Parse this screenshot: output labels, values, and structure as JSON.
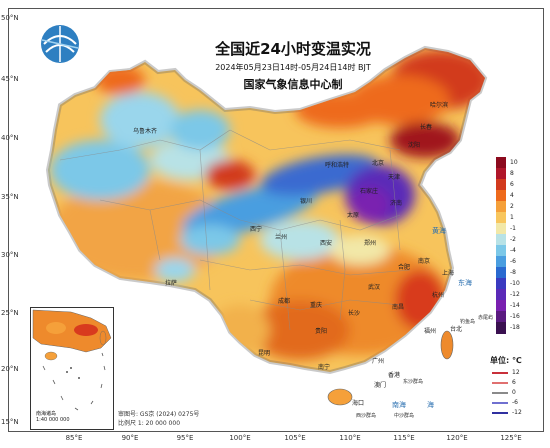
{
  "title": "全国近24小时变温实况",
  "period": "2024年05月23日14时-05月24日14时 BJT",
  "agency": "国家气象信息中心制",
  "logo": "globe-logo-icon",
  "lat_labels": [
    "50°N",
    "45°N",
    "40°N",
    "35°N",
    "30°N",
    "25°N",
    "20°N",
    "15°N"
  ],
  "lon_labels": [
    "85°E",
    "90°E",
    "95°E",
    "100°E",
    "105°E",
    "110°E",
    "115°E",
    "120°E",
    "125°E"
  ],
  "legend": {
    "items": [
      {
        "label": "10",
        "color": "#8c0a1e"
      },
      {
        "label": "8",
        "color": "#b0162a"
      },
      {
        "label": "6",
        "color": "#d23a1e"
      },
      {
        "label": "4",
        "color": "#ee6a1c"
      },
      {
        "label": "2",
        "color": "#f5a03a"
      },
      {
        "label": "1",
        "color": "#f8c65e"
      },
      {
        "label": "-1",
        "color": "#f2e8a8"
      },
      {
        "label": "-2",
        "color": "#b8e2e6"
      },
      {
        "label": "-4",
        "color": "#7cc8e8"
      },
      {
        "label": "-6",
        "color": "#4a9ee0"
      },
      {
        "label": "-8",
        "color": "#2a6ad0"
      },
      {
        "label": "-10",
        "color": "#3a3ac0"
      },
      {
        "label": "-12",
        "color": "#5a2ab8"
      },
      {
        "label": "-14",
        "color": "#7a20b0"
      },
      {
        "label": "-16",
        "color": "#5a1a80"
      },
      {
        "label": "-18",
        "color": "#3a1050"
      }
    ]
  },
  "unit": "单位: ℃",
  "wind_legend": [
    {
      "label": "12",
      "color": "#c8303a"
    },
    {
      "label": "6",
      "color": "#e07070"
    },
    {
      "label": "0",
      "color": "#8a8a8a"
    },
    {
      "label": "-6",
      "color": "#7070d0"
    },
    {
      "label": "-12",
      "color": "#3030a0"
    }
  ],
  "inset": {
    "label_line1": "南海诸岛",
    "label_line2": "1:40 000 000"
  },
  "map_info": {
    "line1": "审图号: GS京 (2024) 0275号",
    "line2": "比例尺 1: 20 000 000"
  },
  "cities": [
    {
      "name": "乌鲁木齐"
    },
    {
      "name": "哈尔滨"
    },
    {
      "name": "长春"
    },
    {
      "name": "沈阳"
    },
    {
      "name": "北京"
    },
    {
      "name": "天津"
    },
    {
      "name": "石家庄"
    },
    {
      "name": "太原"
    },
    {
      "name": "济南"
    },
    {
      "name": "呼和浩特"
    },
    {
      "name": "银川"
    },
    {
      "name": "兰州"
    },
    {
      "name": "西宁"
    },
    {
      "name": "西安"
    },
    {
      "name": "郑州"
    },
    {
      "name": "合肥"
    },
    {
      "name": "南京"
    },
    {
      "name": "上海"
    },
    {
      "name": "杭州"
    },
    {
      "name": "武汉"
    },
    {
      "name": "长沙"
    },
    {
      "name": "南昌"
    },
    {
      "name": "福州"
    },
    {
      "name": "台北"
    },
    {
      "name": "成都"
    },
    {
      "name": "重庆"
    },
    {
      "name": "贵阳"
    },
    {
      "name": "昆明"
    },
    {
      "name": "南宁"
    },
    {
      "name": "广州"
    },
    {
      "name": "香港"
    },
    {
      "name": "澳门"
    },
    {
      "name": "海口"
    },
    {
      "name": "拉萨"
    }
  ],
  "seas": [
    "黄海",
    "东海",
    "南海",
    "海"
  ],
  "islands": [
    "钓鱼岛",
    "赤尾屿",
    "东沙群岛",
    "西沙群岛",
    "中沙群岛"
  ]
}
